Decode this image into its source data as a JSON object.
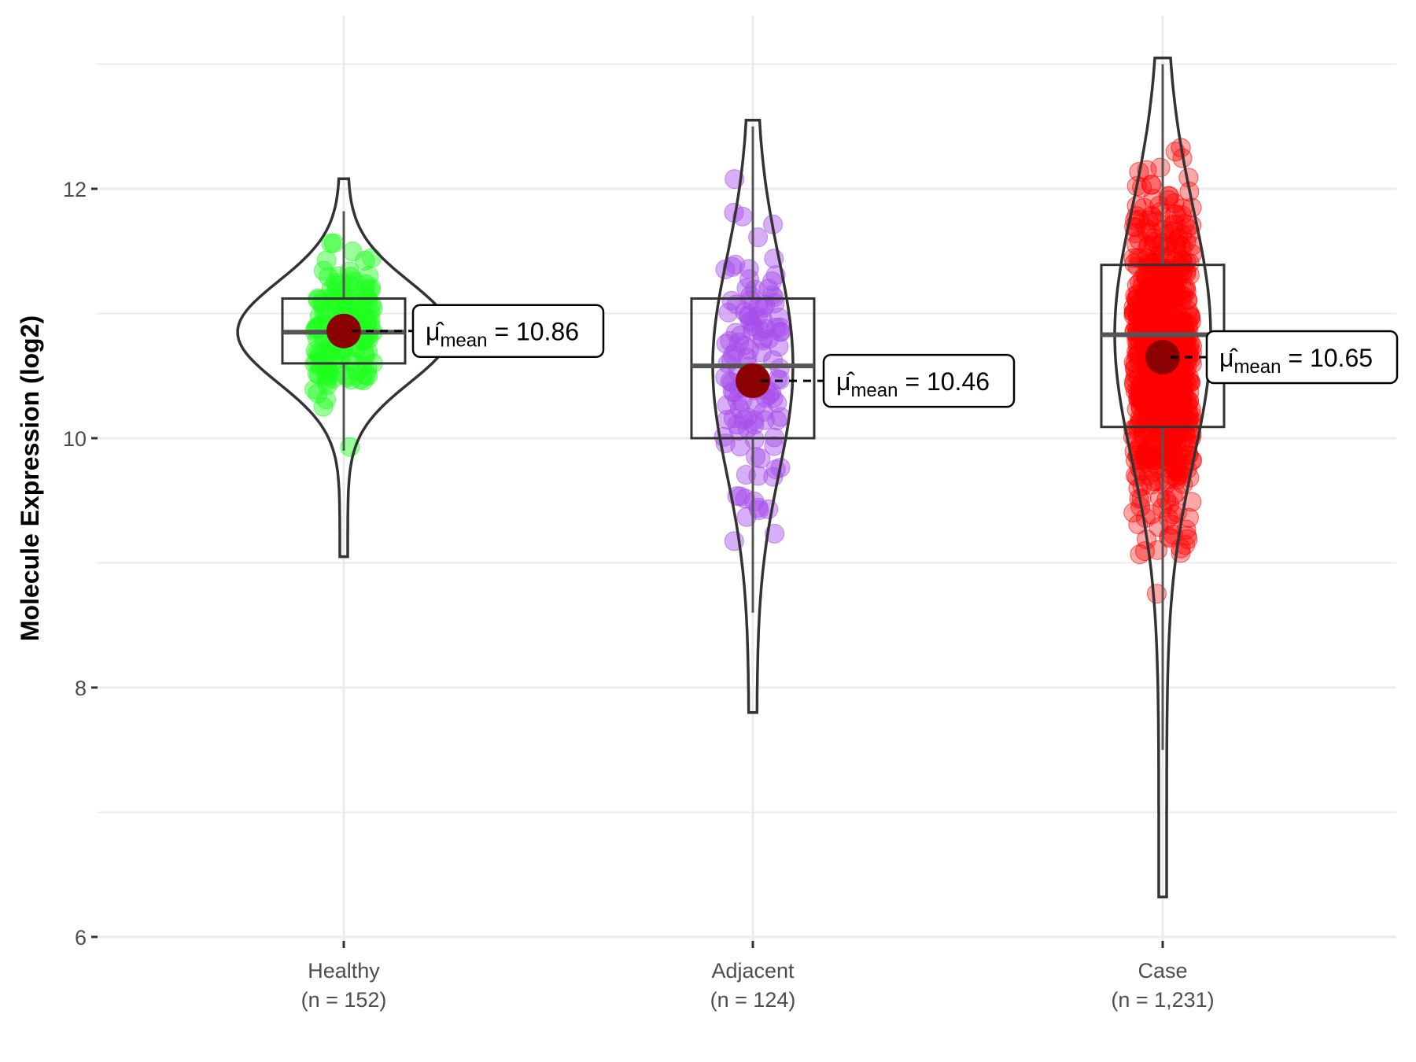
{
  "chart_data": {
    "type": "violin-box-jitter",
    "title": "",
    "xlabel": "",
    "ylabel": "Molecule Expression (log2)",
    "ylim": [
      5.9,
      13.25
    ],
    "yticks": [
      6,
      8,
      10,
      12
    ],
    "grid": true,
    "legend": "none",
    "categories": [
      {
        "name": "Healthy",
        "n_label": "(n = 152)",
        "n": 152,
        "color": "#1EFF1E",
        "mean": 10.86,
        "mean_label": "10.86",
        "box": {
          "q1": 10.6,
          "median": 10.85,
          "q3": 11.12,
          "whisker_low": 9.9,
          "whisker_high": 11.82
        },
        "violin_range": [
          9.05,
          12.08
        ],
        "point_range": [
          9.05,
          12.08
        ]
      },
      {
        "name": "Adjacent",
        "n_label": "(n = 124)",
        "n": 124,
        "color": "#A64DEC",
        "mean": 10.46,
        "mean_label": "10.46",
        "box": {
          "q1": 10.0,
          "median": 10.58,
          "q3": 11.12,
          "whisker_low": 8.6,
          "whisker_high": 12.5
        },
        "violin_range": [
          7.8,
          12.55
        ],
        "point_range": [
          7.78,
          12.55
        ]
      },
      {
        "name": "Case",
        "n_label": "(n = 1,231)",
        "n": 1231,
        "color": "#FF0000",
        "mean": 10.65,
        "mean_label": "10.65",
        "box": {
          "q1": 10.09,
          "median": 10.83,
          "q3": 11.39,
          "whisker_low": 7.5,
          "whisker_high": 13.0
        },
        "violin_range": [
          6.32,
          13.05
        ],
        "point_range": [
          6.32,
          13.08
        ]
      }
    ],
    "mean_symbol": "μ̂",
    "mean_subscript": "mean",
    "mean_marker_color": "#8B0000"
  }
}
